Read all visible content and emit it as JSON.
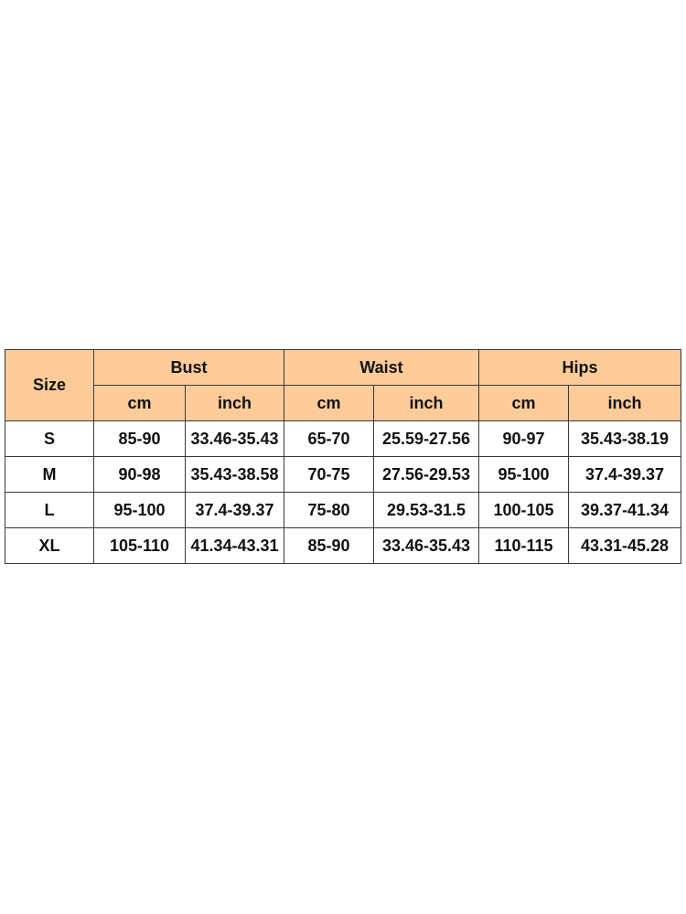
{
  "header_color": "#FFCC99",
  "size_label": "Size",
  "groups": [
    "Bust",
    "Waist",
    "Hips"
  ],
  "units": [
    "cm",
    "inch",
    "cm",
    "inch",
    "cm",
    "inch"
  ],
  "rows": [
    {
      "size": "S",
      "values": [
        "85-90",
        "33.46-35.43",
        "65-70",
        "25.59-27.56",
        "90-97",
        "35.43-38.19"
      ]
    },
    {
      "size": "M",
      "values": [
        "90-98",
        "35.43-38.58",
        "70-75",
        "27.56-29.53",
        "95-100",
        "37.4-39.37"
      ]
    },
    {
      "size": "L",
      "values": [
        "95-100",
        "37.4-39.37",
        "75-80",
        "29.53-31.5",
        "100-105",
        "39.37-41.34"
      ]
    },
    {
      "size": "XL",
      "values": [
        "105-110",
        "41.34-43.31",
        "85-90",
        "33.46-35.43",
        "110-115",
        "43.31-45.28"
      ]
    }
  ]
}
